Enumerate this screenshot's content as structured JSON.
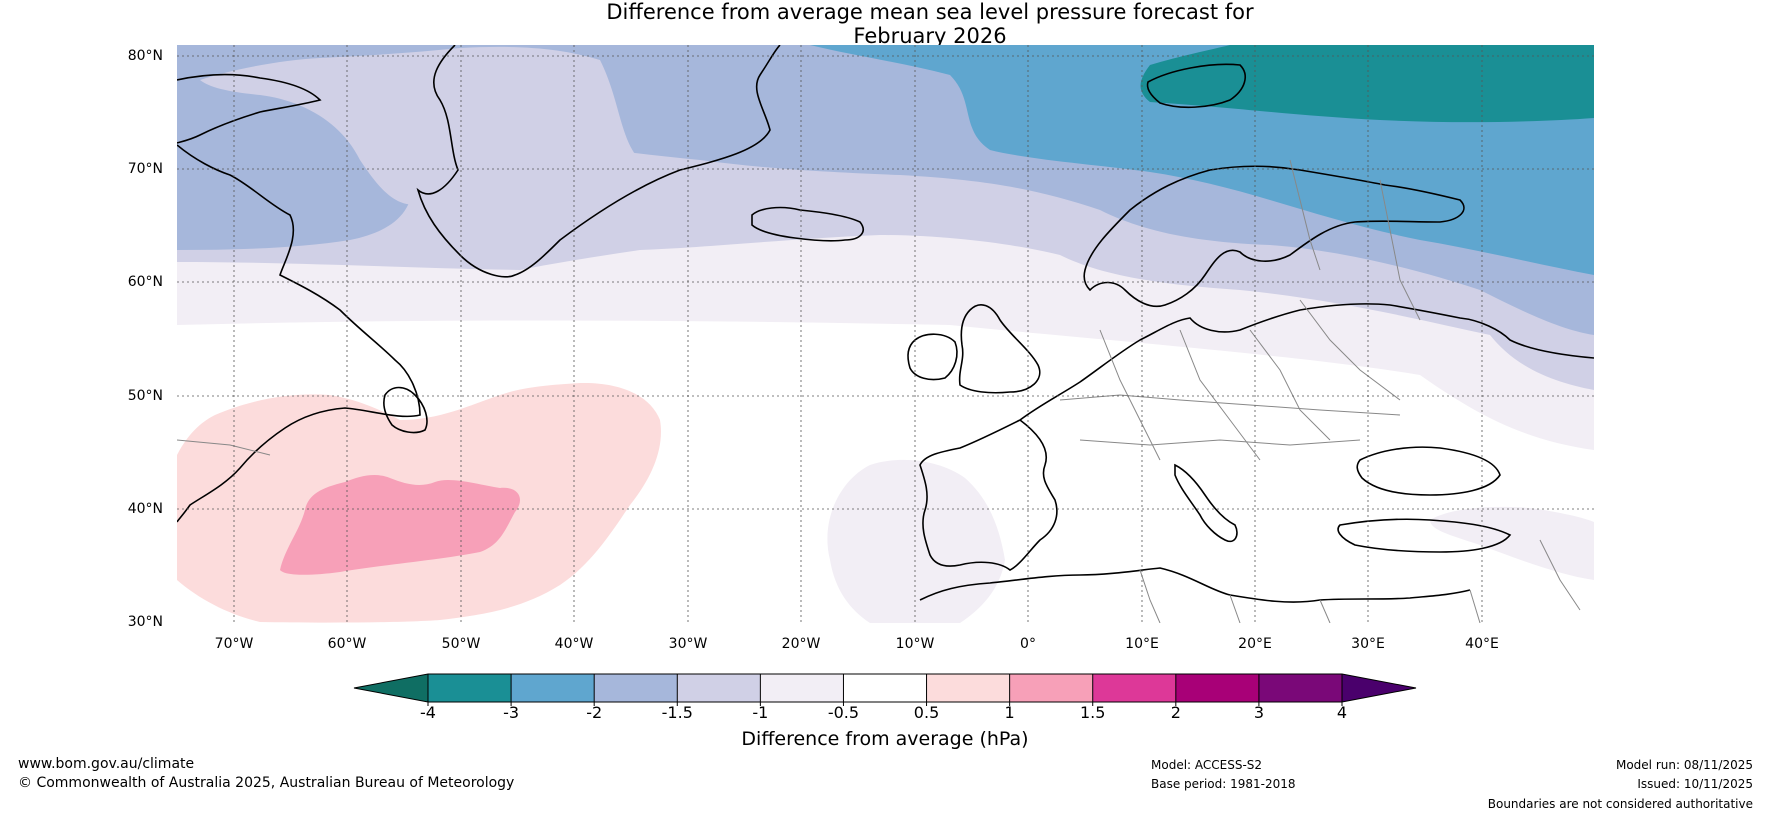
{
  "title": {
    "line1": "Difference from average mean sea level pressure forecast for",
    "line2": "February 2026"
  },
  "lat_labels": [
    "80°N",
    "70°N",
    "60°N",
    "50°N",
    "40°N",
    "30°N"
  ],
  "lon_labels": [
    "70°W",
    "60°W",
    "50°W",
    "40°W",
    "30°W",
    "20°W",
    "10°W",
    "0°",
    "10°E",
    "20°E",
    "30°E",
    "40°E"
  ],
  "colorbar": {
    "ticks": [
      "-4",
      "-3",
      "-2",
      "-1.5",
      "-1",
      "-0.5",
      "0.5",
      "1",
      "1.5",
      "2",
      "3",
      "4"
    ],
    "colors": [
      "#0f6e63",
      "#1a8f95",
      "#5fa6cf",
      "#a6b7db",
      "#d0d0e6",
      "#f2eef5",
      "#ffffff",
      "#fcdcdc",
      "#f7a0b8",
      "#dd3898",
      "#a80077",
      "#7a0878",
      "#4a006c"
    ],
    "label": "Difference from average (hPa)"
  },
  "footer": {
    "website": "www.bom.gov.au/climate",
    "copyright": "© Commonwealth of Australia 2025, Australian Bureau of Meteorology",
    "model": "Model: ACCESS-S2",
    "base_period": "Base period: 1981-2018",
    "model_run": "Model run: 08/11/2025",
    "issued": "Issued: 10/11/2025",
    "disclaimer": "Boundaries are not considered authoritative"
  }
}
